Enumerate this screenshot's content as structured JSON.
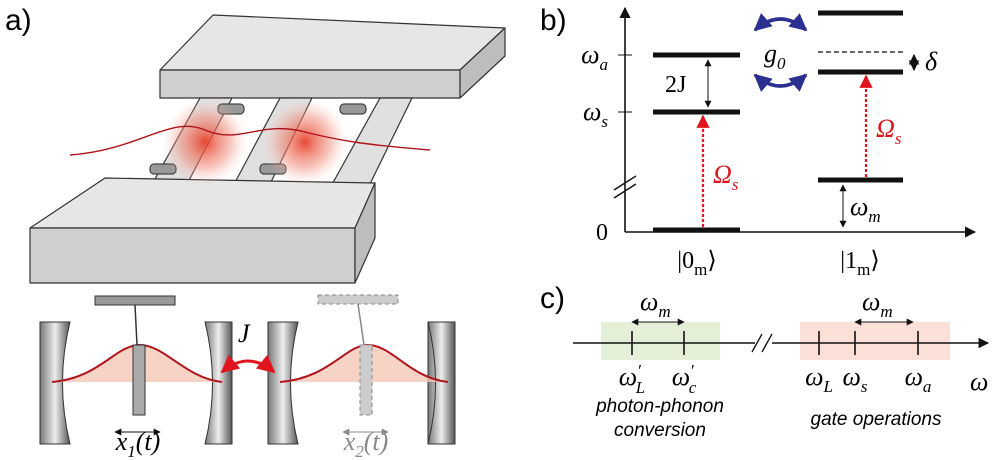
{
  "panel_labels": [
    "a)",
    "b)",
    "c)"
  ],
  "panel_a": {
    "coupling": "J",
    "positions": [
      {
        "base": "x",
        "sub": "1",
        "arg": "(t)"
      },
      {
        "base": "x",
        "sub": "2",
        "arg": "(t)"
      }
    ]
  },
  "panel_b": {
    "y_labels": [
      {
        "base": "ω",
        "sub": "a"
      },
      {
        "base": "ω",
        "sub": "s"
      },
      {
        "base": "0"
      }
    ],
    "splitting": "2J",
    "coupling": {
      "base": "g",
      "sub": "0"
    },
    "detuning": "δ",
    "drives": [
      {
        "base": "Ω",
        "sub": "s"
      },
      {
        "base": "Ω",
        "sub": "s"
      }
    ],
    "phonon": {
      "base": "ω",
      "sub": "m"
    },
    "states": [
      {
        "base": "|0",
        "sub": "m",
        "arg": "⟩"
      },
      {
        "base": "|1",
        "sub": "m",
        "arg": "⟩"
      }
    ]
  },
  "panel_c": {
    "spacings": [
      {
        "base": "ω",
        "sub": "m"
      },
      {
        "base": "ω",
        "sub": "m"
      }
    ],
    "ticks": [
      {
        "base": "ω",
        "prime": "′",
        "sub": "L"
      },
      {
        "base": "ω",
        "prime": "′",
        "sub": "c"
      },
      {
        "base": "ω",
        "sub": "L"
      },
      {
        "base": "ω",
        "sub": "s"
      },
      {
        "base": "ω",
        "sub": "a"
      }
    ],
    "axis": "ω",
    "regions": [
      [
        "photon-phonon",
        "conversion"
      ],
      [
        "gate operations"
      ]
    ]
  }
}
